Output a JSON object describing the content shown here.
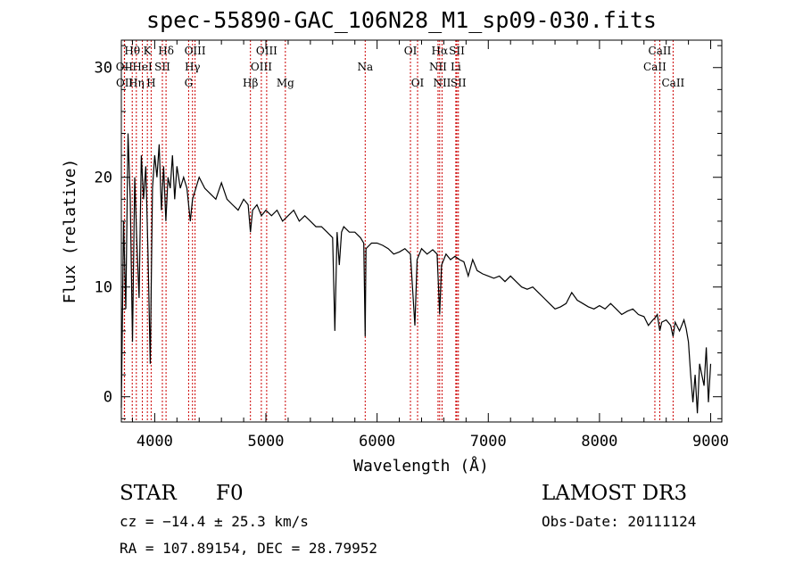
{
  "chart_data": {
    "type": "line",
    "title": "spec-55890-GAC_106N28_M1_sp09-030.fits",
    "xlabel": "Wavelength (Å)",
    "ylabel": "Flux (relative)",
    "xlim": [
      3700,
      9100
    ],
    "ylim": [
      -2.3,
      32.5
    ],
    "xticks": [
      4000,
      5000,
      6000,
      7000,
      8000,
      9000
    ],
    "yticks": [
      0,
      10,
      20,
      30
    ],
    "series": [
      {
        "name": "spectrum",
        "x": [
          3700,
          3720,
          3740,
          3760,
          3780,
          3800,
          3820,
          3840,
          3860,
          3880,
          3900,
          3920,
          3940,
          3960,
          3980,
          4000,
          4020,
          4040,
          4060,
          4080,
          4100,
          4120,
          4140,
          4160,
          4180,
          4200,
          4230,
          4260,
          4290,
          4320,
          4340,
          4370,
          4400,
          4450,
          4500,
          4550,
          4600,
          4650,
          4700,
          4750,
          4800,
          4840,
          4861,
          4880,
          4920,
          4960,
          5000,
          5050,
          5100,
          5150,
          5200,
          5250,
          5300,
          5350,
          5400,
          5450,
          5500,
          5550,
          5600,
          5620,
          5640,
          5660,
          5680,
          5700,
          5750,
          5800,
          5850,
          5880,
          5893,
          5900,
          5950,
          6000,
          6050,
          6100,
          6150,
          6200,
          6250,
          6300,
          6340,
          6360,
          6400,
          6450,
          6500,
          6540,
          6563,
          6580,
          6620,
          6660,
          6700,
          6740,
          6780,
          6820,
          6860,
          6900,
          6950,
          7000,
          7050,
          7100,
          7150,
          7200,
          7250,
          7300,
          7350,
          7400,
          7450,
          7500,
          7550,
          7600,
          7650,
          7700,
          7750,
          7800,
          7850,
          7900,
          7950,
          8000,
          8050,
          8100,
          8150,
          8200,
          8250,
          8300,
          8350,
          8400,
          8440,
          8480,
          8500,
          8520,
          8542,
          8560,
          8600,
          8640,
          8662,
          8680,
          8720,
          8760,
          8780,
          8800,
          8820,
          8840,
          8860,
          8880,
          8900,
          8920,
          8940,
          8960,
          8980,
          9000
        ],
        "y": [
          -1,
          16,
          8,
          24,
          18,
          5,
          20,
          14,
          9,
          22,
          18,
          21,
          13,
          3,
          19,
          22,
          20,
          23,
          17,
          21,
          16,
          20,
          19,
          22,
          18,
          21,
          19,
          20,
          19,
          16,
          18,
          19,
          20,
          19,
          18.5,
          18,
          19.5,
          18,
          17.5,
          17,
          18,
          17.5,
          15,
          17,
          17.5,
          16.5,
          17,
          16.5,
          17,
          16,
          16.5,
          17,
          16,
          16.5,
          16,
          15.5,
          15.5,
          15,
          14.5,
          6,
          15,
          12,
          15,
          15.5,
          15,
          15,
          14.5,
          14,
          5.5,
          13.5,
          14,
          14,
          13.8,
          13.5,
          13,
          13.2,
          13.5,
          13,
          6.5,
          12.5,
          13.5,
          13,
          13.4,
          13,
          7.5,
          12,
          13,
          12.5,
          12.8,
          12.5,
          12.3,
          11,
          12.5,
          11.5,
          11.2,
          11,
          10.8,
          11,
          10.5,
          11,
          10.5,
          10,
          9.8,
          10,
          9.5,
          9,
          8.5,
          8,
          8.2,
          8.5,
          9.5,
          8.8,
          8.5,
          8.2,
          8,
          8.3,
          8,
          8.5,
          8,
          7.5,
          7.8,
          8,
          7.5,
          7.3,
          6.5,
          7,
          7.2,
          7.5,
          6,
          6.8,
          7,
          6.5,
          5.5,
          6.8,
          6,
          7,
          6.2,
          5,
          2,
          -0.5,
          2,
          -1.5,
          3,
          2,
          1,
          4.5,
          -0.5,
          3
        ]
      }
    ],
    "lines": [
      {
        "label": "Hθ",
        "x": 3798,
        "row": 0
      },
      {
        "label": "OII",
        "x": 3727,
        "row": 1
      },
      {
        "label": "OII",
        "x": 3729,
        "row": 2
      },
      {
        "label": "Hη",
        "x": 3835,
        "row": 2
      },
      {
        "label": "HeI",
        "x": 3889,
        "row": 1
      },
      {
        "label": "K",
        "x": 3934,
        "row": 0
      },
      {
        "label": "H",
        "x": 3968,
        "row": 2
      },
      {
        "label": "SII",
        "x": 4069,
        "row": 1
      },
      {
        "label": "Hδ",
        "x": 4102,
        "row": 0
      },
      {
        "label": "OIII",
        "x": 4363,
        "row": 0
      },
      {
        "label": "Hγ",
        "x": 4340,
        "row": 1
      },
      {
        "label": "G",
        "x": 4305,
        "row": 2
      },
      {
        "label": "Hβ",
        "x": 4861,
        "row": 2
      },
      {
        "label": "OIII",
        "x": 5007,
        "row": 0
      },
      {
        "label": "OIII",
        "x": 4959,
        "row": 1
      },
      {
        "label": "Mg",
        "x": 5175,
        "row": 2
      },
      {
        "label": "Na",
        "x": 5893,
        "row": 1
      },
      {
        "label": "OI",
        "x": 6300,
        "row": 0
      },
      {
        "label": "OI",
        "x": 6364,
        "row": 2
      },
      {
        "label": "Hα",
        "x": 6563,
        "row": 0
      },
      {
        "label": "NII",
        "x": 6548,
        "row": 1
      },
      {
        "label": "NII",
        "x": 6584,
        "row": 2
      },
      {
        "label": "SII",
        "x": 6717,
        "row": 0
      },
      {
        "label": "Li",
        "x": 6708,
        "row": 1
      },
      {
        "label": "SII",
        "x": 6731,
        "row": 2
      },
      {
        "label": "CaII",
        "x": 8542,
        "row": 0
      },
      {
        "label": "CaII",
        "x": 8498,
        "row": 1
      },
      {
        "label": "CaII",
        "x": 8662,
        "row": 2
      }
    ]
  },
  "info": {
    "class": "STAR",
    "subclass": "F0",
    "survey": "LAMOST DR3",
    "cz": "cz = −14.4 ± 25.3 km/s",
    "obs_date": "Obs-Date: 20111124",
    "coords": "RA = 107.89154, DEC =  28.79952"
  }
}
